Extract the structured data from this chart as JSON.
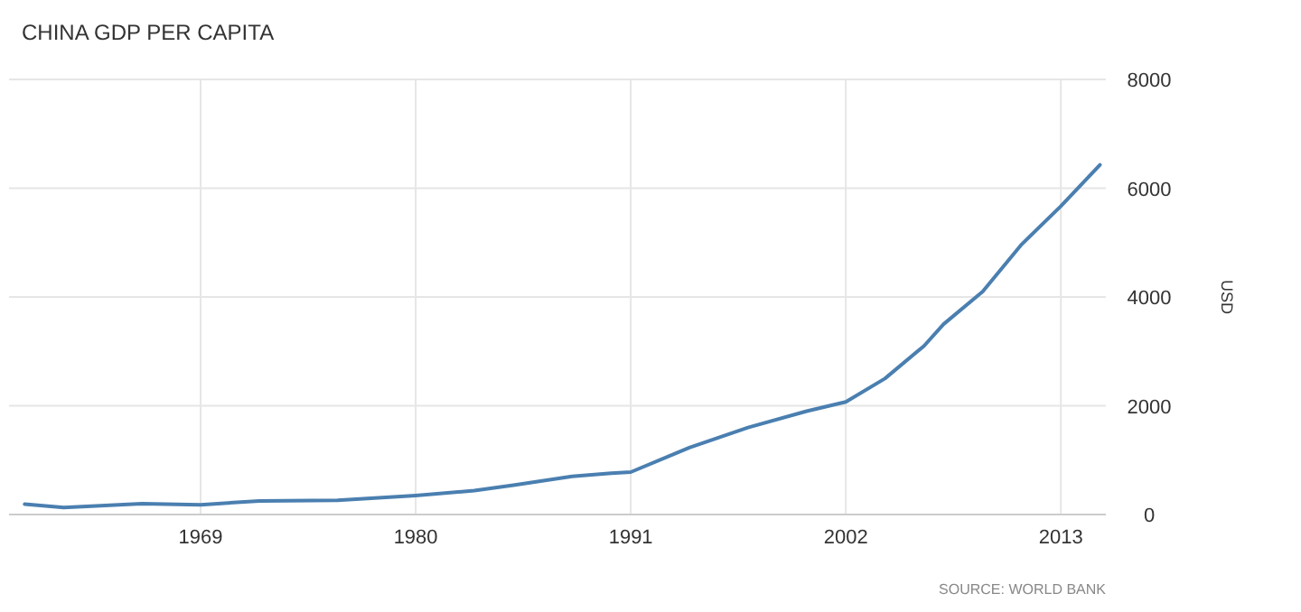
{
  "chart_data": {
    "type": "line",
    "title": "CHINA GDP PER CAPITA",
    "ylabel": "USD",
    "annotations": [
      "SOURCE: WORLD BANK"
    ],
    "x": [
      1960,
      1962,
      1966,
      1969,
      1972,
      1976,
      1980,
      1983,
      1985,
      1988,
      1990,
      1991,
      1994,
      1997,
      2000,
      2002,
      2004,
      2006,
      2007,
      2009,
      2011,
      2013,
      2015
    ],
    "series": [
      {
        "color": "#4a7fb0",
        "values": [
          190,
          130,
          200,
          180,
          250,
          260,
          350,
          440,
          540,
          700,
          760,
          780,
          1230,
          1600,
          1900,
          2070,
          2500,
          3100,
          3500,
          4100,
          4970,
          5670,
          6430
        ]
      }
    ],
    "xlim": [
      1959.2,
      2015.3
    ],
    "xticks": [
      1969,
      1980,
      1991,
      2002,
      2013
    ],
    "ylim": [
      0,
      8000
    ],
    "yticks": [
      0,
      2000,
      4000,
      6000,
      8000
    ],
    "grid": true,
    "line_style": "solid"
  }
}
